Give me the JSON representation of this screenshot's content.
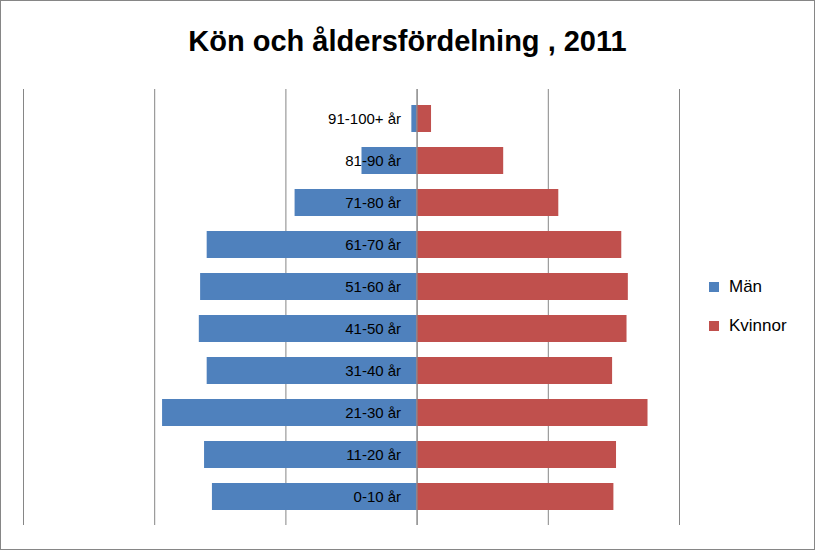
{
  "chart_data": {
    "type": "bar",
    "title": "Kön och åldersfördelning , 2011",
    "orientation": "horizontal",
    "categories": [
      "91-100+ år",
      "81-90 år",
      "71-80 år",
      "61-70 år",
      "51-60 år",
      "41-50 år",
      "31-40 år",
      "21-30 år",
      "11-20 år",
      "0-10 år"
    ],
    "series": [
      {
        "name": "Män",
        "color": "#4f81bd",
        "values": [
          -4,
          -42,
          -93,
          -160,
          -165,
          -166,
          -160,
          -194,
          -162,
          -156
        ]
      },
      {
        "name": "Kvinnor",
        "color": "#c0504d",
        "values": [
          11,
          66,
          108,
          156,
          161,
          160,
          149,
          176,
          152,
          150
        ]
      }
    ],
    "xlim": [
      -300,
      200
    ],
    "xticks": [
      -300,
      -200,
      -100,
      0,
      100,
      200
    ],
    "grid": true,
    "tick_labels": false,
    "legend": "right"
  }
}
